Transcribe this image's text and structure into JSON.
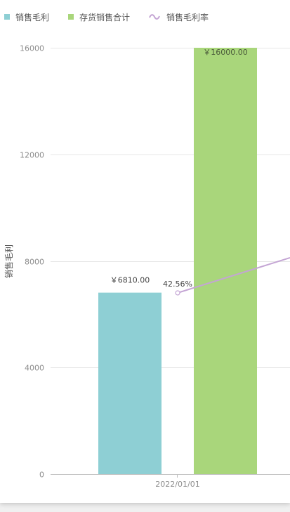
{
  "legend": [
    {
      "label": "销售毛利",
      "kind": "bar",
      "color": "#8ecfd4"
    },
    {
      "label": "存货销售合计",
      "kind": "bar",
      "color": "#a9d67b"
    },
    {
      "label": "销售毛利率",
      "kind": "line",
      "color": "#c4a5d4"
    }
  ],
  "chart_data": {
    "type": "bar",
    "categories": [
      "2022/01/01"
    ],
    "series": [
      {
        "name": "销售毛利",
        "values": [
          6810
        ],
        "labels": [
          "￥6810.00"
        ],
        "color": "#8ecfd4"
      },
      {
        "name": "存货销售合计",
        "values": [
          16000
        ],
        "labels": [
          "￥16000.00"
        ],
        "color": "#a9d67b"
      }
    ],
    "line_series": {
      "name": "销售毛利率",
      "values": [
        0.4256
      ],
      "labels": [
        "42.56%"
      ],
      "color": "#c4a5d4",
      "note_visible_trend": "line continues upward past right edge"
    },
    "ylabel": "销售毛利",
    "yticks": [
      "0",
      "4000",
      "8000",
      "12000",
      "16000"
    ],
    "ylim": [
      0,
      16000
    ],
    "grid": true,
    "legend_position": "top-left"
  }
}
